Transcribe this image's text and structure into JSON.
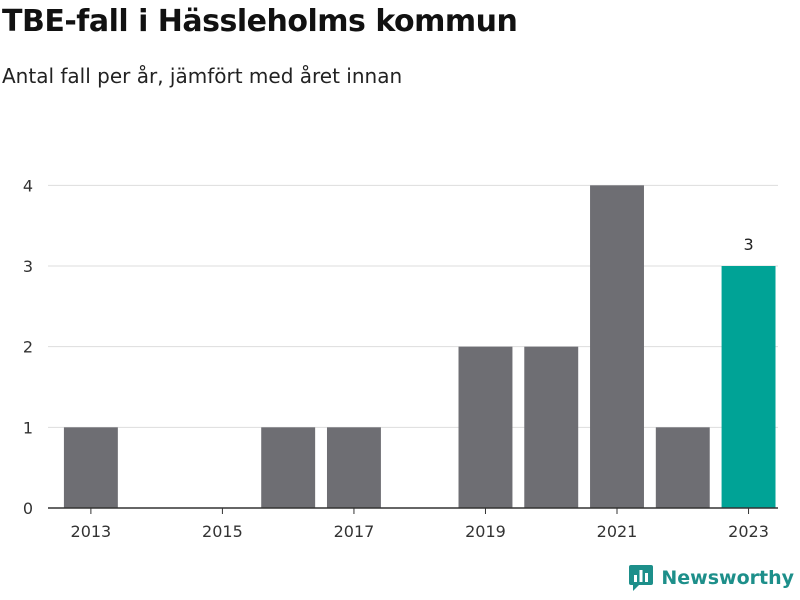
{
  "header": {
    "title": "TBE-fall i Hässleholms kommun",
    "subtitle": "Antal fall per år, jämfört med året innan"
  },
  "brand": {
    "name": "Newsworthy",
    "icon": "newsworthy-logo-icon",
    "color": "#1d8f8a"
  },
  "chart_data": {
    "type": "bar",
    "x": [
      2013,
      2014,
      2015,
      2016,
      2017,
      2018,
      2019,
      2020,
      2021,
      2022,
      2023
    ],
    "values": [
      1,
      0,
      0,
      1,
      1,
      0,
      2,
      2,
      4,
      1,
      3
    ],
    "x_tick_labels": [
      "2013",
      "2015",
      "2017",
      "2019",
      "2021",
      "2023"
    ],
    "y_ticks": [
      0,
      1,
      2,
      3,
      4
    ],
    "ylim": [
      0,
      4.5
    ],
    "grid": true,
    "highlight_x": 2023,
    "highlight_label": "3",
    "colors": {
      "bar": "#6e6e73",
      "highlight": "#00a396",
      "grid": "#dddddd",
      "axis": "#333333"
    }
  }
}
